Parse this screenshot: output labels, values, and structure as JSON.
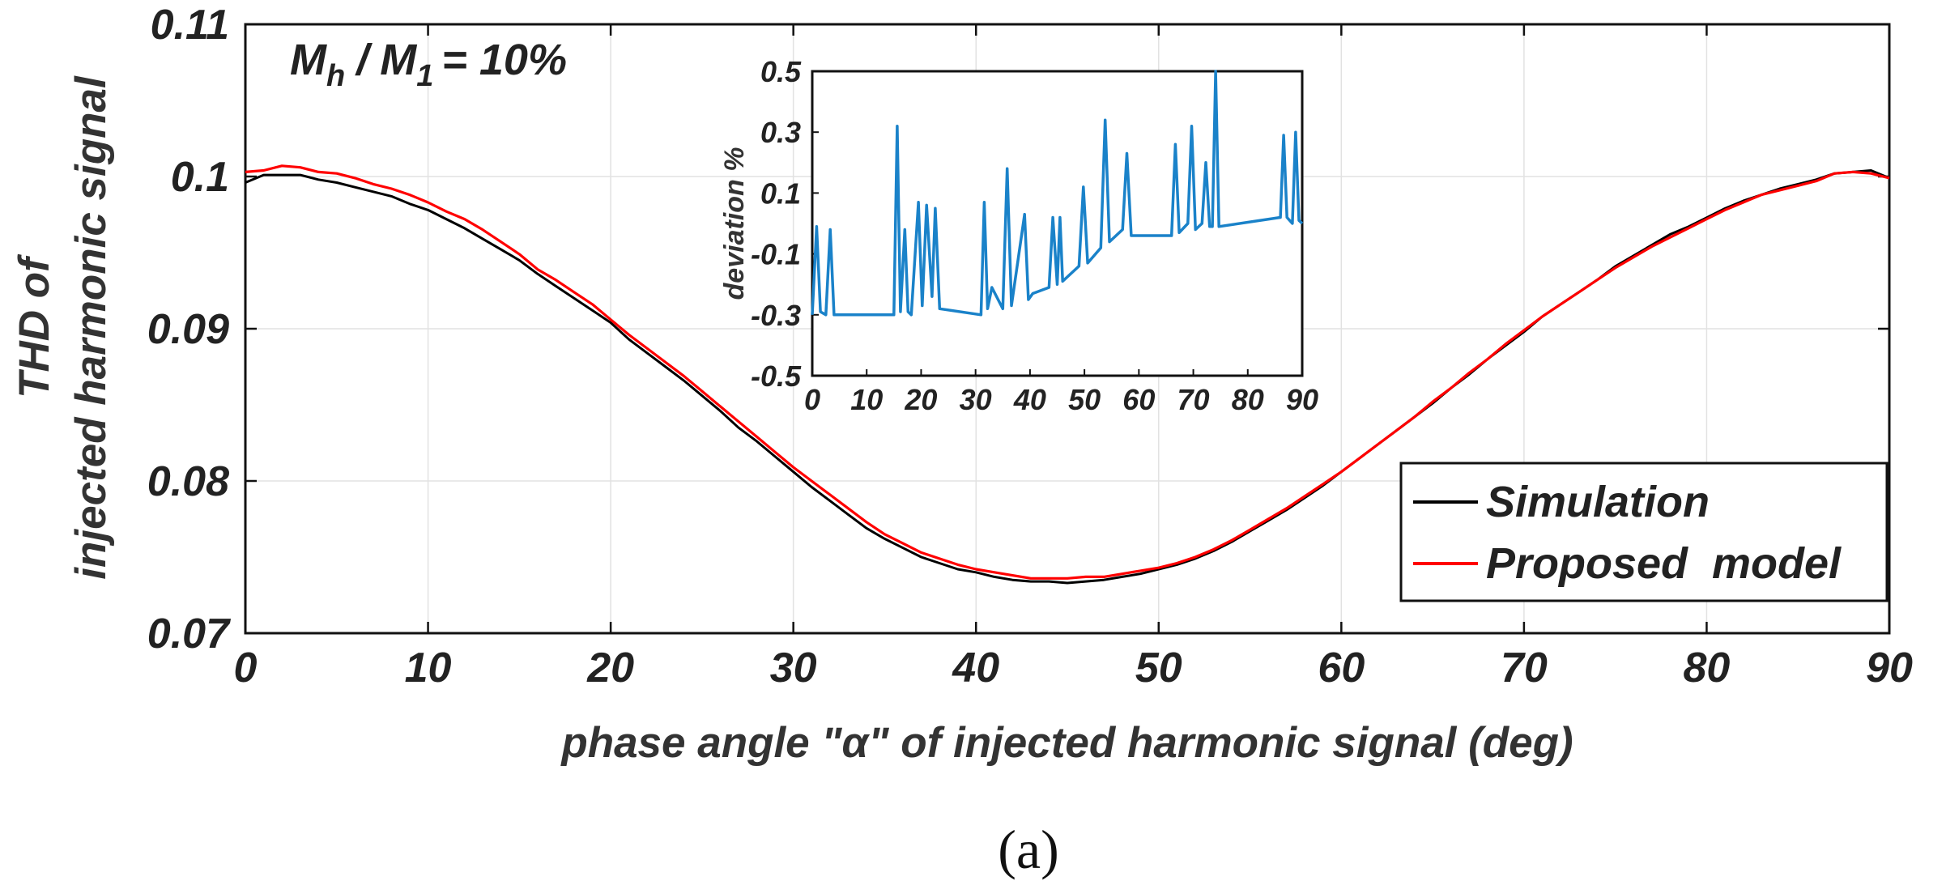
{
  "chart_data": [
    {
      "id": "main",
      "type": "line",
      "annotation": "= 10%",
      "annotation_parts": {
        "m": "M",
        "sub_h": "h",
        "slash": "/",
        "m1": "M",
        "sub_1": "1"
      },
      "xlabel": "phase angle \"α\" of injected harmonic signal (deg)",
      "ylabel_line1": "THD of",
      "ylabel_line2": "injected harmonic signal",
      "xlim": [
        0,
        90
      ],
      "ylim": [
        0.07,
        0.11
      ],
      "xticks": [
        0,
        10,
        20,
        30,
        40,
        50,
        60,
        70,
        80,
        90
      ],
      "yticks": [
        0.07,
        0.08,
        0.09,
        0.1,
        0.11
      ],
      "ytick_labels": [
        "0.07",
        "0.08",
        "0.09",
        "0.1",
        "0.11"
      ],
      "grid": true,
      "legend_position": "bottom-right",
      "series": [
        {
          "name": "Simulation",
          "color": "#000000",
          "x": [
            0,
            1,
            2,
            3,
            4,
            5,
            6,
            7,
            8,
            9,
            10,
            11,
            12,
            13,
            14,
            15,
            16,
            17,
            18,
            19,
            20,
            21,
            22,
            23,
            24,
            25,
            26,
            27,
            28,
            29,
            30,
            31,
            32,
            33,
            34,
            35,
            36,
            37,
            38,
            39,
            40,
            41,
            42,
            43,
            44,
            45,
            46,
            47,
            48,
            49,
            50,
            51,
            52,
            53,
            54,
            55,
            56,
            57,
            58,
            59,
            60,
            61,
            62,
            63,
            64,
            65,
            66,
            67,
            68,
            69,
            70,
            71,
            72,
            73,
            74,
            75,
            76,
            77,
            78,
            79,
            80,
            81,
            82,
            83,
            84,
            85,
            86,
            87,
            88,
            89,
            90
          ],
          "y": [
            0.0996,
            0.1001,
            0.1001,
            0.1001,
            0.0998,
            0.0996,
            0.0993,
            0.099,
            0.0987,
            0.0982,
            0.0978,
            0.0972,
            0.0966,
            0.0959,
            0.0952,
            0.0945,
            0.0936,
            0.0928,
            0.092,
            0.0912,
            0.0904,
            0.0893,
            0.0884,
            0.0875,
            0.0866,
            0.0856,
            0.0846,
            0.0835,
            0.0826,
            0.0816,
            0.0806,
            0.0796,
            0.0787,
            0.0778,
            0.0769,
            0.0762,
            0.0756,
            0.075,
            0.0746,
            0.0742,
            0.074,
            0.0737,
            0.0735,
            0.0734,
            0.0734,
            0.0733,
            0.0734,
            0.0735,
            0.0737,
            0.0739,
            0.0742,
            0.0745,
            0.0749,
            0.0754,
            0.076,
            0.0767,
            0.0774,
            0.0781,
            0.0789,
            0.0797,
            0.0806,
            0.0815,
            0.0824,
            0.0833,
            0.0842,
            0.0851,
            0.0861,
            0.087,
            0.088,
            0.0889,
            0.0898,
            0.0908,
            0.0916,
            0.0924,
            0.0932,
            0.0941,
            0.0948,
            0.0955,
            0.0962,
            0.0967,
            0.0973,
            0.0979,
            0.0984,
            0.0988,
            0.0992,
            0.0995,
            0.0998,
            0.1002,
            0.1003,
            0.1004,
            0.0999
          ]
        },
        {
          "name": "Proposed  model",
          "color": "#ff0000",
          "x": [
            0,
            1,
            2,
            3,
            4,
            5,
            6,
            7,
            8,
            9,
            10,
            11,
            12,
            13,
            14,
            15,
            16,
            17,
            18,
            19,
            20,
            21,
            22,
            23,
            24,
            25,
            26,
            27,
            28,
            29,
            30,
            31,
            32,
            33,
            34,
            35,
            36,
            37,
            38,
            39,
            40,
            41,
            42,
            43,
            44,
            45,
            46,
            47,
            48,
            49,
            50,
            51,
            52,
            53,
            54,
            55,
            56,
            57,
            58,
            59,
            60,
            61,
            62,
            63,
            64,
            65,
            66,
            67,
            68,
            69,
            70,
            71,
            72,
            73,
            74,
            75,
            76,
            77,
            78,
            79,
            80,
            81,
            82,
            83,
            84,
            85,
            86,
            87,
            88,
            89,
            90
          ],
          "y": [
            0.1003,
            0.1004,
            0.1007,
            0.1006,
            0.1003,
            0.1002,
            0.0999,
            0.0995,
            0.0992,
            0.0988,
            0.0983,
            0.0977,
            0.0972,
            0.0965,
            0.0957,
            0.0949,
            0.0939,
            0.0932,
            0.0924,
            0.0916,
            0.0906,
            0.0896,
            0.0887,
            0.0878,
            0.0869,
            0.0859,
            0.0849,
            0.0839,
            0.0829,
            0.0819,
            0.0809,
            0.08,
            0.0791,
            0.0782,
            0.0773,
            0.0765,
            0.0759,
            0.0753,
            0.0749,
            0.0745,
            0.0742,
            0.074,
            0.0738,
            0.0736,
            0.0736,
            0.0736,
            0.0737,
            0.0737,
            0.0739,
            0.0741,
            0.0743,
            0.0746,
            0.075,
            0.0755,
            0.0761,
            0.0768,
            0.0775,
            0.0782,
            0.079,
            0.0798,
            0.0806,
            0.0815,
            0.0824,
            0.0833,
            0.0842,
            0.0852,
            0.0861,
            0.0871,
            0.088,
            0.089,
            0.0899,
            0.0908,
            0.0916,
            0.0924,
            0.0932,
            0.094,
            0.0947,
            0.0954,
            0.096,
            0.0966,
            0.0972,
            0.0978,
            0.0983,
            0.0988,
            0.0991,
            0.0994,
            0.0997,
            0.1002,
            0.1003,
            0.1002,
            0.0999
          ]
        }
      ]
    },
    {
      "id": "inset",
      "type": "line",
      "ylabel": "deviation %",
      "xlim": [
        0,
        90
      ],
      "ylim": [
        -0.5,
        0.5
      ],
      "xticks": [
        0,
        10,
        20,
        30,
        40,
        50,
        60,
        70,
        80,
        90
      ],
      "yticks": [
        -0.5,
        -0.3,
        -0.1,
        0.1,
        0.3,
        0.5
      ],
      "ytick_labels": [
        "-0.5",
        "-0.3",
        "-0.1",
        "0.1",
        "0.3",
        "0.5"
      ],
      "grid": false,
      "series": [
        {
          "name": "deviation",
          "color": "#1a82c9",
          "x": [
            0,
            0.8,
            1.5,
            2.5,
            3.3,
            4,
            15,
            15.6,
            16.2,
            17,
            17.6,
            18.2,
            19.5,
            20.2,
            21,
            22,
            22.6,
            23.4,
            31,
            31.6,
            32.2,
            33,
            35,
            35.8,
            36.6,
            39,
            39.7,
            40.5,
            43.5,
            44.2,
            45,
            45.5,
            46,
            49,
            49.8,
            50.6,
            53,
            53.8,
            54.6,
            57,
            57.8,
            58.6,
            66,
            66.7,
            67.4,
            69,
            69.7,
            70.4,
            71.6,
            72.3,
            73,
            73.5,
            74.1,
            74.7,
            86,
            86.6,
            87.2,
            88.2,
            88.8,
            89.4,
            90
          ],
          "y": [
            -0.3,
            -0.01,
            -0.29,
            -0.3,
            -0.02,
            -0.3,
            -0.3,
            0.32,
            -0.29,
            -0.02,
            -0.29,
            -0.3,
            0.07,
            -0.27,
            0.06,
            -0.24,
            0.05,
            -0.28,
            -0.3,
            0.07,
            -0.28,
            -0.21,
            -0.28,
            0.18,
            -0.27,
            0.03,
            -0.25,
            -0.23,
            -0.21,
            0.02,
            -0.2,
            0.02,
            -0.19,
            -0.14,
            0.12,
            -0.13,
            -0.08,
            0.34,
            -0.06,
            -0.02,
            0.23,
            -0.04,
            -0.04,
            0.26,
            -0.03,
            0.0,
            0.32,
            -0.02,
            0.0,
            0.2,
            -0.01,
            -0.01,
            0.54,
            -0.01,
            0.02,
            0.29,
            0.02,
            0.0,
            0.3,
            0.01,
            0.0
          ]
        }
      ]
    }
  ],
  "caption": "(a)"
}
